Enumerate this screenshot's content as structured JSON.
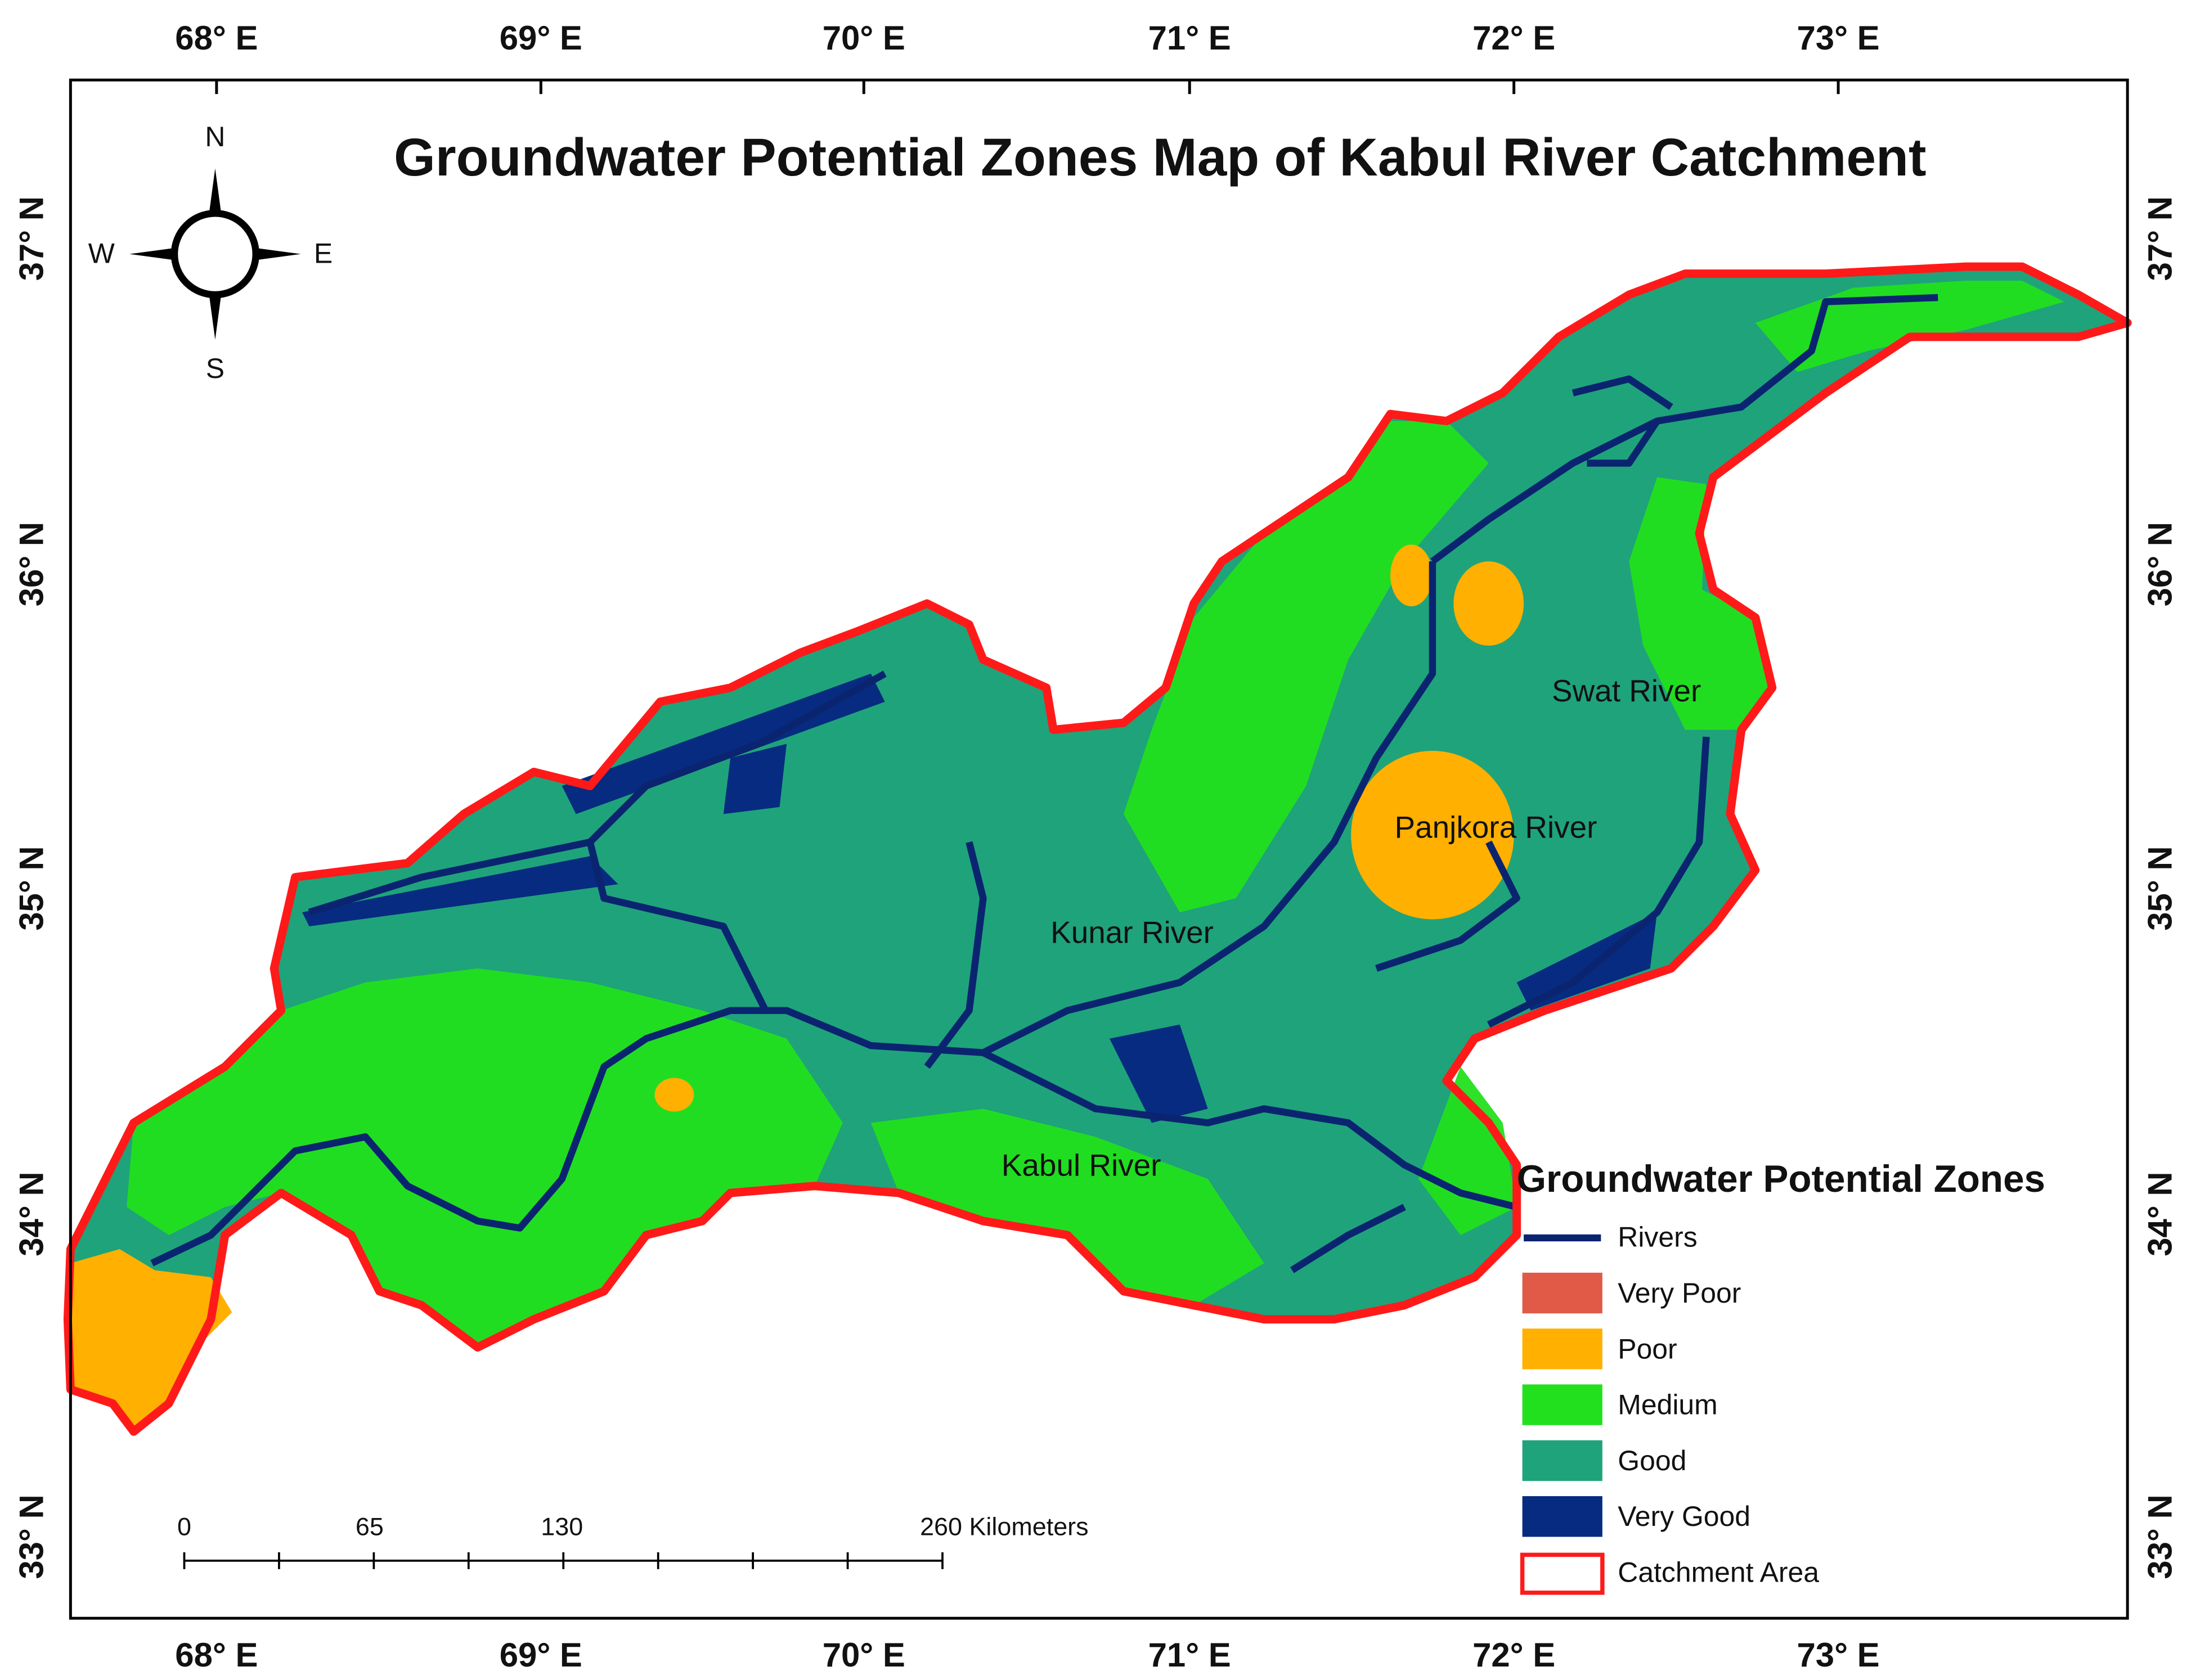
{
  "title": "Groundwater Potential Zones Map of Kabul River Catchment",
  "compass": {
    "north": "N",
    "west": "W",
    "east": "E",
    "south": "S"
  },
  "longitude_labels": [
    "68° E",
    "69° E",
    "70° E",
    "71° E",
    "72° E",
    "73° E"
  ],
  "latitude_labels": [
    "37° N",
    "36° N",
    "35° N",
    "34° N",
    "33° N"
  ],
  "river_labels": [
    "Swat River",
    "Panjkora River",
    "Kunar River",
    "Kabul River"
  ],
  "legend": {
    "title": "Groundwater Potential Zones",
    "items": [
      {
        "label": "Rivers",
        "color": "#0b2470"
      },
      {
        "label": "Very Poor",
        "color": "#e05a47"
      },
      {
        "label": "Poor",
        "color": "#ffb000"
      },
      {
        "label": "Medium",
        "color": "#22e01e"
      },
      {
        "label": "Good",
        "color": "#1fa37b"
      },
      {
        "label": "Very Good",
        "color": "#062b80"
      },
      {
        "label": "Catchment Area",
        "color": "#ff1a1a"
      }
    ]
  },
  "scale_bar": {
    "labels": [
      "0",
      "65",
      "130",
      "260 Kilometers"
    ]
  }
}
